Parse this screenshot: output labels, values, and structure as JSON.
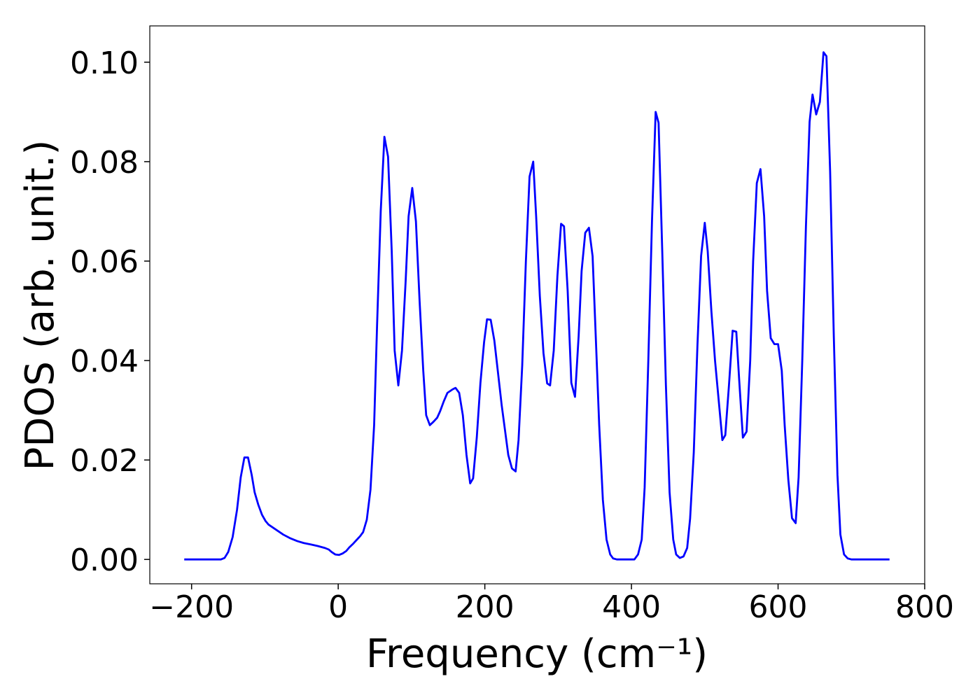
{
  "chart_data": {
    "type": "line",
    "xlabel": "Frequency (cm⁻¹)",
    "ylabel": "PDOS (arb. unit.)",
    "xlim": [
      -257,
      800
    ],
    "ylim": [
      -0.0049,
      0.1073
    ],
    "xticks": [
      {
        "value": -200,
        "label": "−200"
      },
      0,
      200,
      400,
      600,
      800
    ],
    "yticks": [
      {
        "value": 0,
        "label": "0.00"
      },
      {
        "value": 0.02,
        "label": "0.02"
      },
      {
        "value": 0.04,
        "label": "0.04"
      },
      {
        "value": 0.06,
        "label": "0.06"
      },
      {
        "value": 0.08,
        "label": "0.08"
      },
      {
        "value": 0.1,
        "label": "0.10"
      }
    ],
    "grid": false,
    "series": [
      {
        "color": "#0000ff",
        "x": [
          -210,
          -160,
          -155,
          -150,
          -144,
          -138,
          -133,
          -128,
          -123,
          -118,
          -114,
          -109,
          -104,
          -99,
          -95,
          -85,
          -75,
          -66,
          -56,
          -47,
          -37,
          -28,
          -18,
          -13,
          -9,
          -4,
          1,
          6,
          11,
          15,
          20,
          25,
          30,
          34,
          39,
          44,
          49,
          53,
          58,
          63,
          68,
          73,
          77,
          82,
          87,
          92,
          96,
          101,
          106,
          111,
          116,
          120,
          125,
          130,
          135,
          139,
          144,
          149,
          156,
          160,
          165,
          170,
          175,
          180,
          184,
          189,
          194,
          199,
          203,
          208,
          213,
          223,
          232,
          237,
          242,
          246,
          251,
          256,
          261,
          266,
          270,
          275,
          280,
          285,
          289,
          294,
          299,
          304,
          308,
          313,
          318,
          323,
          328,
          332,
          337,
          342,
          347,
          351,
          356,
          361,
          366,
          371,
          375,
          380,
          404,
          409,
          414,
          418,
          423,
          428,
          433,
          437,
          442,
          447,
          452,
          457,
          461,
          466,
          471,
          476,
          480,
          485,
          490,
          495,
          500,
          504,
          509,
          514,
          519,
          524,
          528,
          533,
          538,
          543,
          547,
          552,
          557,
          562,
          566,
          571,
          576,
          581,
          585,
          590,
          595,
          600,
          605,
          609,
          614,
          619,
          624,
          628,
          633,
          638,
          643,
          647,
          652,
          657,
          662,
          666,
          671,
          676,
          681,
          685,
          690,
          695,
          700,
          752
        ],
        "values": [
          0,
          0,
          0.0003,
          0.0015,
          0.0045,
          0.01,
          0.0165,
          0.0205,
          0.0205,
          0.017,
          0.0135,
          0.011,
          0.009,
          0.0077,
          0.007,
          0.006,
          0.005,
          0.0043,
          0.0037,
          0.0033,
          0.003,
          0.0027,
          0.0023,
          0.002,
          0.0015,
          0.001,
          0.0009,
          0.0012,
          0.0017,
          0.0024,
          0.0031,
          0.0039,
          0.0047,
          0.0055,
          0.008,
          0.014,
          0.027,
          0.047,
          0.07,
          0.085,
          0.081,
          0.062,
          0.042,
          0.035,
          0.042,
          0.056,
          0.069,
          0.0747,
          0.068,
          0.052,
          0.038,
          0.029,
          0.027,
          0.0277,
          0.0285,
          0.0298,
          0.0318,
          0.0335,
          0.0342,
          0.0345,
          0.0335,
          0.029,
          0.021,
          0.0153,
          0.0163,
          0.0245,
          0.0355,
          0.0437,
          0.0483,
          0.0482,
          0.044,
          0.031,
          0.021,
          0.0183,
          0.0177,
          0.024,
          0.039,
          0.06,
          0.077,
          0.08,
          0.069,
          0.053,
          0.0415,
          0.0354,
          0.035,
          0.042,
          0.057,
          0.0675,
          0.067,
          0.054,
          0.0355,
          0.0327,
          0.045,
          0.058,
          0.0657,
          0.0667,
          0.061,
          0.046,
          0.027,
          0.012,
          0.004,
          0.001,
          0.0002,
          0,
          0,
          0.001,
          0.004,
          0.0145,
          0.04,
          0.068,
          0.09,
          0.0878,
          0.062,
          0.035,
          0.0135,
          0.004,
          0.001,
          0.0003,
          0.0006,
          0.0023,
          0.0082,
          0.0215,
          0.043,
          0.061,
          0.0677,
          0.062,
          0.05,
          0.04,
          0.032,
          0.024,
          0.025,
          0.035,
          0.046,
          0.0458,
          0.036,
          0.0245,
          0.0257,
          0.04,
          0.06,
          0.0757,
          0.0785,
          0.069,
          0.054,
          0.0445,
          0.0433,
          0.0433,
          0.038,
          0.027,
          0.016,
          0.0083,
          0.0073,
          0.0165,
          0.04,
          0.067,
          0.088,
          0.0935,
          0.0895,
          0.092,
          0.102,
          0.1012,
          0.078,
          0.045,
          0.017,
          0.005,
          0.001,
          0.0002,
          0,
          0
        ]
      }
    ]
  }
}
